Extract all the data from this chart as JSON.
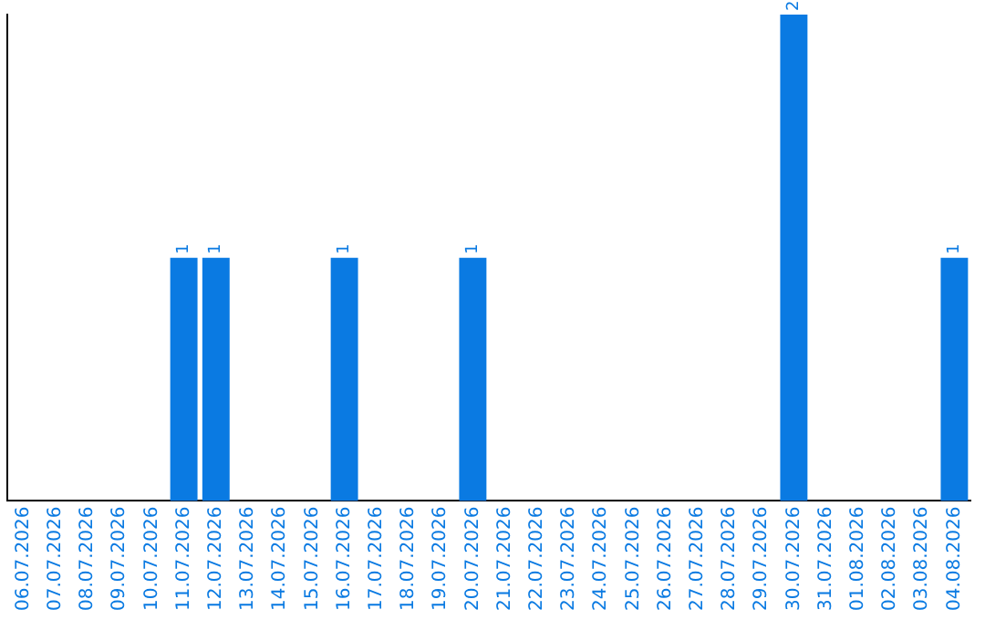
{
  "chart_data": {
    "type": "bar",
    "categories": [
      "06.07.2026",
      "07.07.2026",
      "08.07.2026",
      "09.07.2026",
      "10.07.2026",
      "11.07.2026",
      "12.07.2026",
      "13.07.2026",
      "14.07.2026",
      "15.07.2026",
      "16.07.2026",
      "17.07.2026",
      "18.07.2026",
      "19.07.2026",
      "20.07.2026",
      "21.07.2026",
      "22.07.2026",
      "23.07.2026",
      "24.07.2026",
      "25.07.2026",
      "26.07.2026",
      "27.07.2026",
      "28.07.2026",
      "29.07.2026",
      "30.07.2026",
      "31.07.2026",
      "01.08.2026",
      "02.08.2026",
      "03.08.2026",
      "04.08.2026"
    ],
    "values": [
      0,
      0,
      0,
      0,
      0,
      1,
      1,
      0,
      0,
      0,
      1,
      0,
      0,
      0,
      1,
      0,
      0,
      0,
      0,
      0,
      0,
      0,
      0,
      0,
      2,
      0,
      0,
      0,
      0,
      1
    ],
    "value_labels": [
      null,
      null,
      null,
      null,
      null,
      "1",
      "1",
      null,
      null,
      null,
      "1",
      null,
      null,
      null,
      "1",
      null,
      null,
      null,
      null,
      null,
      null,
      null,
      null,
      null,
      "2",
      null,
      null,
      null,
      null,
      "1"
    ],
    "color": "#0a7ae2",
    "ylim": [
      0,
      2
    ],
    "tick_labels": "x",
    "grid": false,
    "legend": false
  }
}
